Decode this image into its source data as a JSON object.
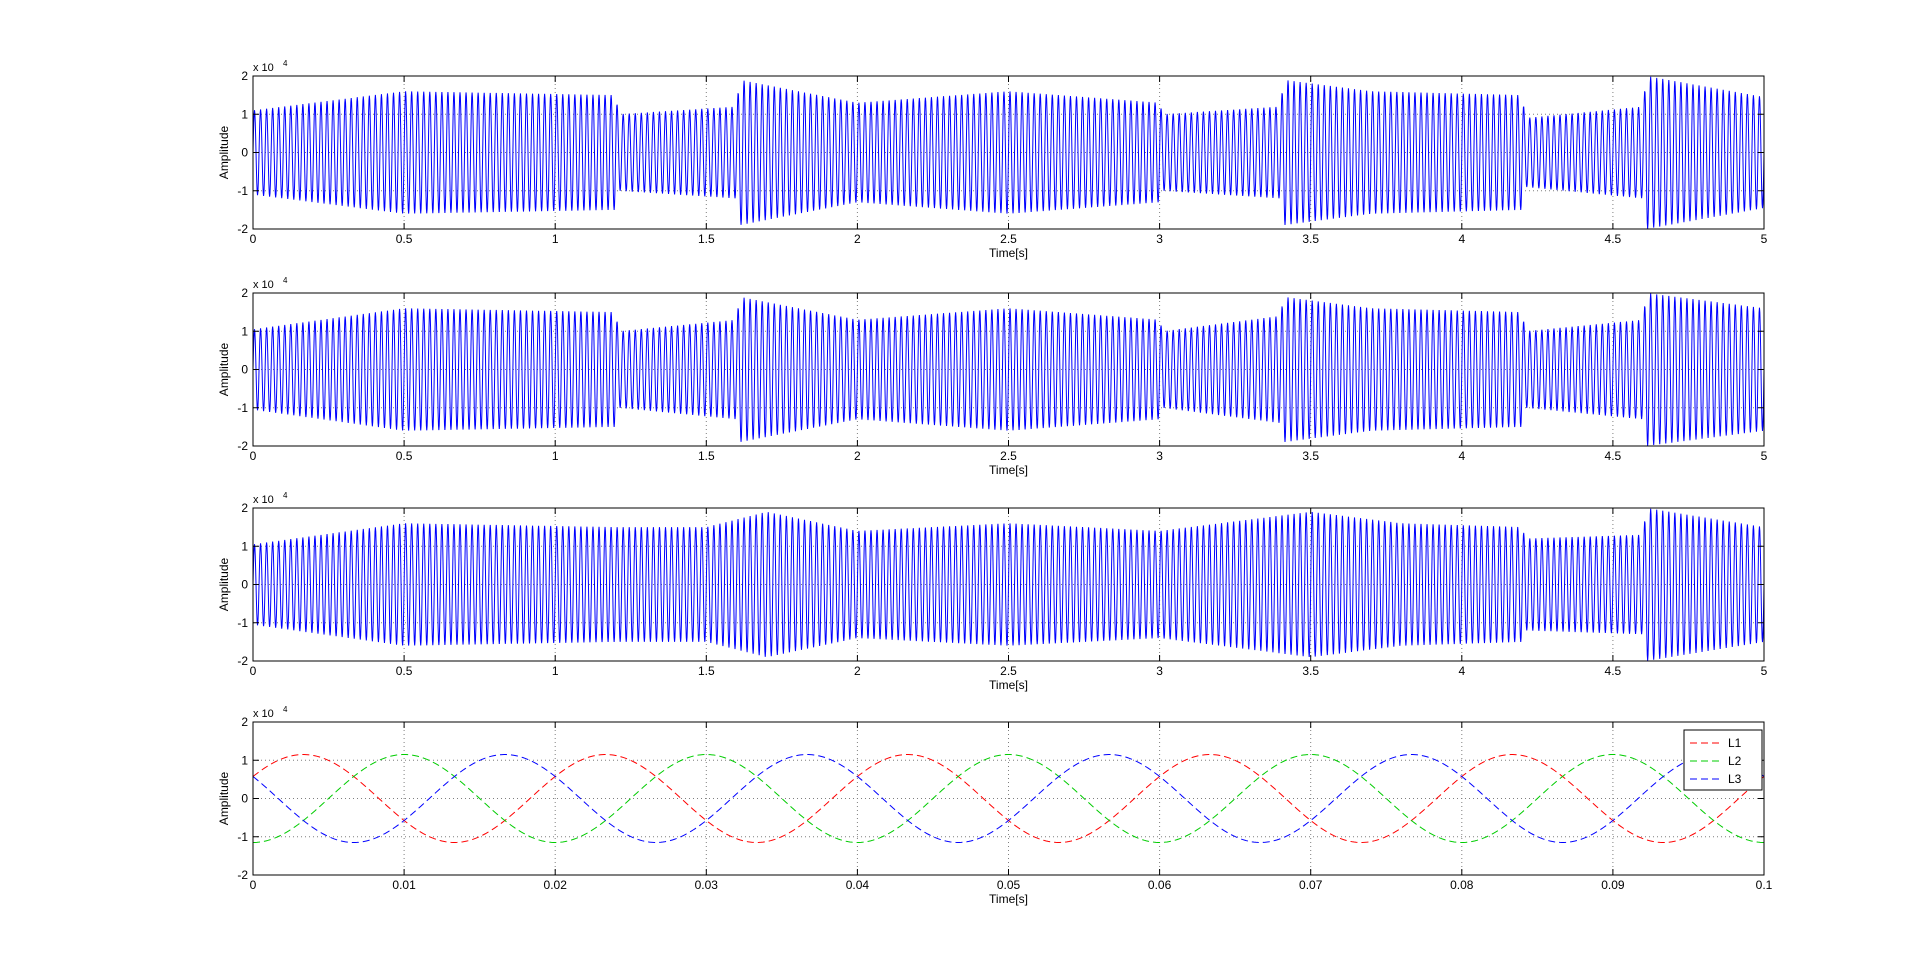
{
  "chart_data": [
    {
      "type": "line",
      "xlabel": "Time[s]",
      "ylabel": "Amplitude",
      "y_exponent_label": "x 10",
      "y_exponent": "4",
      "xlim": [
        0,
        5
      ],
      "ylim": [
        -2,
        2
      ],
      "x_ticks": [
        "0",
        "0.5",
        "1",
        "1.5",
        "2",
        "2.5",
        "3",
        "3.5",
        "4",
        "4.5",
        "5"
      ],
      "y_ticks": [
        "2",
        "1",
        "0",
        "-1",
        "-2"
      ],
      "grid": true,
      "series_color": "#0000ff",
      "carrier_cycles_per_second": 50,
      "envelope_x": [
        0,
        0.5,
        1.2,
        1.21,
        1.6,
        1.61,
        2.0,
        2.5,
        3.0,
        3.01,
        3.4,
        3.41,
        3.7,
        4.2,
        4.21,
        4.6,
        4.61,
        5.0
      ],
      "envelope_y": [
        1.1,
        1.6,
        1.5,
        1.0,
        1.2,
        1.9,
        1.3,
        1.6,
        1.3,
        1.0,
        1.2,
        1.9,
        1.6,
        1.5,
        0.9,
        1.2,
        2.0,
        1.45
      ]
    },
    {
      "type": "line",
      "xlabel": "Time[s]",
      "ylabel": "Amplitude",
      "y_exponent_label": "x 10",
      "y_exponent": "4",
      "xlim": [
        0,
        5
      ],
      "ylim": [
        -2,
        2
      ],
      "x_ticks": [
        "0",
        "0.5",
        "1",
        "1.5",
        "2",
        "2.5",
        "3",
        "3.5",
        "4",
        "4.5",
        "5"
      ],
      "y_ticks": [
        "2",
        "1",
        "0",
        "-1",
        "-2"
      ],
      "grid": true,
      "series_color": "#0000ff",
      "carrier_cycles_per_second": 50,
      "envelope_x": [
        0,
        0.5,
        1.2,
        1.21,
        1.6,
        1.61,
        2.0,
        2.5,
        3.0,
        3.01,
        3.4,
        3.41,
        3.7,
        4.2,
        4.21,
        4.6,
        4.61,
        5.0
      ],
      "envelope_y": [
        1.05,
        1.6,
        1.5,
        1.0,
        1.3,
        1.9,
        1.3,
        1.6,
        1.3,
        1.0,
        1.4,
        1.9,
        1.6,
        1.5,
        1.0,
        1.3,
        2.0,
        1.6
      ]
    },
    {
      "type": "line",
      "xlabel": "Time[s]",
      "ylabel": "Amplitude",
      "y_exponent_label": "x 10",
      "y_exponent": "4",
      "xlim": [
        0,
        5
      ],
      "ylim": [
        -2,
        2
      ],
      "x_ticks": [
        "0",
        "0.5",
        "1",
        "1.5",
        "2",
        "2.5",
        "3",
        "3.5",
        "4",
        "4.5",
        "5"
      ],
      "y_ticks": [
        "2",
        "1",
        "0",
        "-1",
        "-2"
      ],
      "grid": true,
      "series_color": "#0000ff",
      "carrier_cycles_per_second": 50,
      "envelope_x": [
        0,
        0.5,
        1.2,
        1.5,
        1.7,
        2.0,
        2.5,
        3.0,
        3.5,
        3.8,
        4.2,
        4.21,
        4.6,
        4.61,
        5.0
      ],
      "envelope_y": [
        1.05,
        1.6,
        1.5,
        1.5,
        1.9,
        1.4,
        1.6,
        1.4,
        1.9,
        1.6,
        1.5,
        1.2,
        1.3,
        2.0,
        1.5
      ]
    },
    {
      "type": "line",
      "xlabel": "Time[s]",
      "ylabel": "Amplitude",
      "y_exponent_label": "x 10",
      "y_exponent": "4",
      "xlim": [
        0,
        0.1
      ],
      "ylim": [
        -2,
        2
      ],
      "x_ticks": [
        "0",
        "0.01",
        "0.02",
        "0.03",
        "0.04",
        "0.05",
        "0.06",
        "0.07",
        "0.08",
        "0.09",
        "0.1"
      ],
      "y_ticks": [
        "2",
        "1",
        "0",
        "-1",
        "-2"
      ],
      "grid": true,
      "legend_position": "top-right",
      "series": [
        {
          "name": "L1",
          "color": "#ff0000",
          "amplitude": 1.15,
          "frequency_hz": 50,
          "phase_deg": 30
        },
        {
          "name": "L2",
          "color": "#00cc00",
          "amplitude": 1.15,
          "frequency_hz": 50,
          "phase_deg": -90
        },
        {
          "name": "L3",
          "color": "#0000ff",
          "amplitude": 1.15,
          "frequency_hz": 50,
          "phase_deg": 150
        }
      ]
    }
  ]
}
